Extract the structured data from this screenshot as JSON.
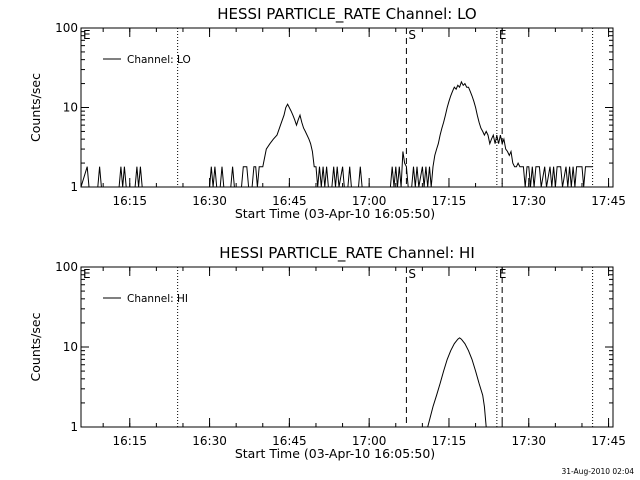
{
  "footer": "31-Aug-2010 02:04",
  "chart_data": [
    {
      "type": "line",
      "title": "HESSI PARTICLE_RATE Channel: LO",
      "xlabel": "Start Time (03-Apr-10 16:05:50)",
      "ylabel": "Counts/sec",
      "yscale": "log",
      "ylim": [
        1,
        100
      ],
      "yticks": [
        {
          "v": 1,
          "label": "1"
        },
        {
          "v": 10,
          "label": "10"
        },
        {
          "v": 100,
          "label": "100"
        }
      ],
      "xlim": [
        "16:05:50",
        "17:45:50"
      ],
      "xticks": [
        "16:15",
        "16:30",
        "16:45",
        "17:00",
        "17:15",
        "17:30",
        "17:45"
      ],
      "legend": {
        "label": "Channel: LO",
        "position": "top-left"
      },
      "markers": [
        {
          "t": "16:05:50",
          "style": "none",
          "label": "E"
        },
        {
          "t": "16:24",
          "style": "dotted",
          "label": ""
        },
        {
          "t": "17:07",
          "style": "dashed",
          "label": "S"
        },
        {
          "t": "17:24",
          "style": "dotted",
          "label": "E"
        },
        {
          "t": "17:25",
          "style": "dashed",
          "label": ""
        },
        {
          "t": "17:42",
          "style": "dotted",
          "label": ""
        }
      ],
      "series": [
        {
          "name": "",
          "points": [
            [
              "16:05:50",
              1
            ],
            [
              "16:07",
              1.8
            ],
            [
              "16:07:20",
              1
            ],
            [
              "16:09",
              1
            ],
            [
              "16:09:20",
              1.8
            ],
            [
              "16:09:40",
              1
            ],
            [
              "16:13",
              1
            ],
            [
              "16:13:20",
              1.8
            ],
            [
              "16:13:40",
              1
            ],
            [
              "16:14",
              1.8
            ],
            [
              "16:14:20",
              1
            ],
            [
              "16:16",
              1
            ],
            [
              "16:16:20",
              1.8
            ],
            [
              "16:16:40",
              1
            ],
            [
              "16:17",
              1.8
            ],
            [
              "16:17:20",
              1
            ],
            [
              "16:30",
              1
            ],
            [
              "16:30:20",
              1.8
            ],
            [
              "16:30:40",
              1
            ],
            [
              "16:31",
              1.8
            ],
            [
              "16:31:20",
              1
            ],
            [
              "16:32",
              1
            ],
            [
              "16:32:20",
              1.8
            ],
            [
              "16:32:40",
              1
            ],
            [
              "16:34",
              1
            ],
            [
              "16:34:20",
              1.8
            ],
            [
              "16:34:40",
              1
            ],
            [
              "16:36",
              1
            ],
            [
              "16:36:20",
              1.8
            ],
            [
              "16:37",
              1.8
            ],
            [
              "16:37:20",
              1
            ],
            [
              "16:38",
              1
            ],
            [
              "16:38:20",
              1.8
            ],
            [
              "16:38:40",
              1.8
            ],
            [
              "16:39",
              1
            ],
            [
              "16:39:20",
              1.8
            ],
            [
              "16:40",
              1.8
            ],
            [
              "16:40:40",
              3
            ],
            [
              "16:41:20",
              3.5
            ],
            [
              "16:42",
              4
            ],
            [
              "16:42:40",
              4.5
            ],
            [
              "16:43:20",
              6
            ],
            [
              "16:44",
              8
            ],
            [
              "16:44:20",
              10
            ],
            [
              "16:44:40",
              11
            ],
            [
              "16:45:20",
              9
            ],
            [
              "16:45:40",
              8
            ],
            [
              "16:46",
              7
            ],
            [
              "16:46:20",
              6
            ],
            [
              "16:46:40",
              7
            ],
            [
              "16:47",
              8
            ],
            [
              "16:47:20",
              6.5
            ],
            [
              "16:47:40",
              5.5
            ],
            [
              "16:48",
              5
            ],
            [
              "16:48:40",
              4
            ],
            [
              "16:49",
              3.5
            ],
            [
              "16:49:20",
              2.8
            ],
            [
              "16:49:40",
              1.8
            ],
            [
              "16:50",
              1.8
            ],
            [
              "16:50:20",
              1
            ],
            [
              "16:50:40",
              1.8
            ],
            [
              "16:51",
              1
            ],
            [
              "16:51:20",
              1.8
            ],
            [
              "16:51:40",
              1
            ],
            [
              "16:52",
              1.8
            ],
            [
              "16:52:20",
              1
            ],
            [
              "16:53",
              1
            ],
            [
              "16:53:20",
              1.8
            ],
            [
              "16:53:40",
              1
            ],
            [
              "16:54",
              1.8
            ],
            [
              "16:54:20",
              1
            ],
            [
              "16:55",
              1.8
            ],
            [
              "16:55:20",
              1
            ],
            [
              "16:56",
              1
            ],
            [
              "16:56:20",
              1.8
            ],
            [
              "16:56:40",
              1
            ],
            [
              "16:58",
              1
            ],
            [
              "16:58:20",
              1.8
            ],
            [
              "16:58:40",
              1
            ],
            [
              "17:04",
              1
            ],
            [
              "17:04:20",
              1.8
            ],
            [
              "17:04:40",
              1
            ],
            [
              "17:05",
              1.8
            ],
            [
              "17:05:20",
              1
            ],
            [
              "17:05:40",
              1.8
            ],
            [
              "17:06",
              1
            ],
            [
              "17:06:20",
              2.8
            ],
            [
              "17:06:40",
              2
            ],
            [
              "17:07",
              1.8
            ],
            [
              "17:07:20",
              1
            ],
            [
              "17:08",
              1
            ],
            [
              "17:08:20",
              1.8
            ],
            [
              "17:08:40",
              1
            ],
            [
              "17:09",
              1.8
            ],
            [
              "17:09:20",
              1
            ],
            [
              "17:10",
              1.8
            ],
            [
              "17:10:20",
              1
            ],
            [
              "17:10:40",
              1.8
            ],
            [
              "17:11",
              1
            ],
            [
              "17:11:20",
              1.8
            ],
            [
              "17:11:40",
              1
            ],
            [
              "17:12",
              1.8
            ],
            [
              "17:12:20",
              2.5
            ],
            [
              "17:12:40",
              3
            ],
            [
              "17:13",
              3.5
            ],
            [
              "17:13:20",
              4.5
            ],
            [
              "17:13:40",
              5.5
            ],
            [
              "17:14",
              6.5
            ],
            [
              "17:14:20",
              8
            ],
            [
              "17:14:40",
              10
            ],
            [
              "17:15",
              12
            ],
            [
              "17:15:20",
              14
            ],
            [
              "17:15:40",
              16
            ],
            [
              "17:16",
              18
            ],
            [
              "17:16:20",
              17
            ],
            [
              "17:16:40",
              19
            ],
            [
              "17:17",
              18
            ],
            [
              "17:17:20",
              21
            ],
            [
              "17:17:40",
              19
            ],
            [
              "17:18",
              20
            ],
            [
              "17:18:20",
              18
            ],
            [
              "17:18:40",
              18
            ],
            [
              "17:19",
              16
            ],
            [
              "17:19:20",
              14
            ],
            [
              "17:19:40",
              12
            ],
            [
              "17:20",
              10
            ],
            [
              "17:20:20",
              8
            ],
            [
              "17:20:40",
              6.5
            ],
            [
              "17:21",
              5.5
            ],
            [
              "17:21:20",
              5
            ],
            [
              "17:21:40",
              4.5
            ],
            [
              "17:22",
              5
            ],
            [
              "17:22:20",
              4.5
            ],
            [
              "17:22:40",
              3.5
            ],
            [
              "17:23",
              4
            ],
            [
              "17:23:20",
              4.5
            ],
            [
              "17:23:40",
              3.5
            ],
            [
              "17:24",
              4.5
            ],
            [
              "17:24:20",
              3.5
            ],
            [
              "17:24:40",
              4.5
            ],
            [
              "17:25",
              3.5
            ],
            [
              "17:25:20",
              4
            ],
            [
              "17:25:40",
              3
            ],
            [
              "17:26",
              2.8
            ],
            [
              "17:26:20",
              2.5
            ],
            [
              "17:26:40",
              2.8
            ],
            [
              "17:27",
              2
            ],
            [
              "17:27:20",
              1.8
            ],
            [
              "17:27:40",
              1.8
            ],
            [
              "17:28",
              2
            ],
            [
              "17:28:20",
              1.8
            ],
            [
              "17:29",
              1.8
            ],
            [
              "17:29:20",
              1
            ],
            [
              "17:29:40",
              1.8
            ],
            [
              "17:30",
              1.8
            ],
            [
              "17:30:20",
              1
            ],
            [
              "17:30:40",
              1.8
            ],
            [
              "17:31",
              1
            ],
            [
              "17:31:20",
              1.8
            ],
            [
              "17:32",
              1.8
            ],
            [
              "17:32:20",
              1
            ],
            [
              "17:33",
              1.8
            ],
            [
              "17:33:20",
              1
            ],
            [
              "17:34",
              1.8
            ],
            [
              "17:34:20",
              1
            ],
            [
              "17:34:40",
              1.8
            ],
            [
              "17:35",
              1
            ],
            [
              "17:35:20",
              1.8
            ],
            [
              "17:36",
              1.8
            ],
            [
              "17:36:20",
              1
            ],
            [
              "17:37",
              1.8
            ],
            [
              "17:37:20",
              1
            ],
            [
              "17:37:40",
              1.8
            ],
            [
              "17:38",
              1
            ],
            [
              "17:38:20",
              1.8
            ],
            [
              "17:38:40",
              1
            ],
            [
              "17:39",
              1.8
            ],
            [
              "17:40",
              1.8
            ],
            [
              "17:40:20",
              1
            ],
            [
              "17:40:40",
              1.8
            ],
            [
              "17:42",
              1.8
            ]
          ]
        }
      ]
    },
    {
      "type": "line",
      "title": "HESSI PARTICLE_RATE Channel: HI",
      "xlabel": "Start Time (03-Apr-10 16:05:50)",
      "ylabel": "Counts/sec",
      "yscale": "log",
      "ylim": [
        1,
        100
      ],
      "yticks": [
        {
          "v": 1,
          "label": "1"
        },
        {
          "v": 10,
          "label": "10"
        },
        {
          "v": 100,
          "label": "100"
        }
      ],
      "xlim": [
        "16:05:50",
        "17:45:50"
      ],
      "xticks": [
        "16:15",
        "16:30",
        "16:45",
        "17:00",
        "17:15",
        "17:30",
        "17:45"
      ],
      "legend": {
        "label": "Channel: HI",
        "position": "top-left"
      },
      "markers": [
        {
          "t": "16:05:50",
          "style": "none",
          "label": "E"
        },
        {
          "t": "16:24",
          "style": "dotted",
          "label": ""
        },
        {
          "t": "17:07",
          "style": "dashed",
          "label": "S"
        },
        {
          "t": "17:24",
          "style": "dotted",
          "label": "E"
        },
        {
          "t": "17:25",
          "style": "dashed",
          "label": ""
        },
        {
          "t": "17:42",
          "style": "dotted",
          "label": ""
        }
      ],
      "series": [
        {
          "name": "",
          "points": [
            [
              "17:11",
              1
            ],
            [
              "17:12",
              1.8
            ],
            [
              "17:12:40",
              2.5
            ],
            [
              "17:13:20",
              3.5
            ],
            [
              "17:14",
              5
            ],
            [
              "17:14:40",
              7
            ],
            [
              "17:15:20",
              9
            ],
            [
              "17:16",
              11
            ],
            [
              "17:16:40",
              12.5
            ],
            [
              "17:17",
              13
            ],
            [
              "17:17:20",
              12.5
            ],
            [
              "17:18",
              11
            ],
            [
              "17:18:40",
              9
            ],
            [
              "17:19:20",
              7
            ],
            [
              "17:20",
              5
            ],
            [
              "17:20:40",
              3.5
            ],
            [
              "17:21:20",
              2.5
            ],
            [
              "17:21:40",
              1.8
            ],
            [
              "17:22",
              1
            ]
          ]
        }
      ]
    }
  ]
}
